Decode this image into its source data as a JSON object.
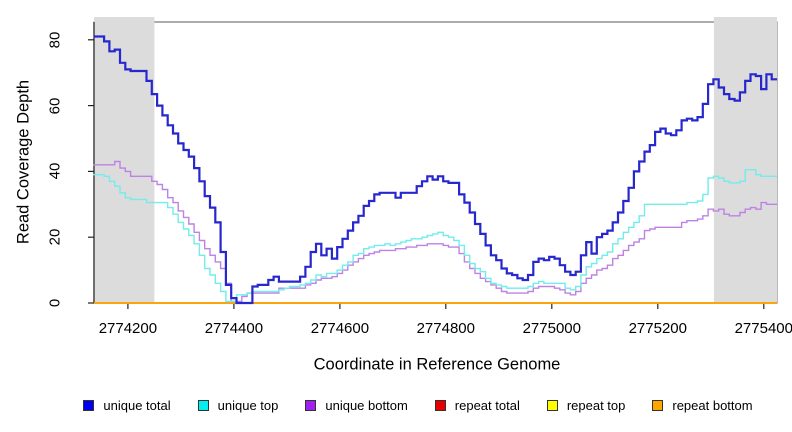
{
  "chart_data": {
    "type": "line",
    "style": "step",
    "title": "",
    "xlabel": "Coordinate in Reference Genome",
    "ylabel": "Read Coverage Depth",
    "grid": false,
    "legend_position": "bottom",
    "x_axis": {
      "min": 2774136,
      "max": 2775425,
      "ticks": [
        2774200,
        2774400,
        2774600,
        2774800,
        2775000,
        2775200,
        2775400
      ]
    },
    "y_axis": {
      "min": 0,
      "max": 85.4,
      "ticks": [
        0,
        20,
        40,
        60,
        80
      ]
    },
    "shaded_regions": [
      {
        "x0": 2774136,
        "x1": 2774250,
        "color": "#dcdcdc"
      },
      {
        "x0": 2775306,
        "x1": 2775425,
        "color": "#dcdcdc"
      }
    ],
    "x_start": 2774140,
    "x_step": 10,
    "series": [
      {
        "name": "unique total",
        "line_color": "#2727ce",
        "legend_fill": "#0000ee",
        "stroke_width": 2.2,
        "values": [
          81,
          81,
          79.5,
          76.5,
          77,
          73,
          71,
          70.5,
          70.5,
          70.5,
          67.5,
          63.5,
          60,
          57,
          54,
          51.5,
          48.5,
          46.5,
          44.5,
          41,
          37,
          32.5,
          29,
          24.5,
          15.5,
          5.5,
          1.5,
          0,
          0,
          0,
          5,
          5.5,
          5.5,
          7,
          8,
          6.5,
          6.5,
          6.5,
          6.5,
          8,
          11,
          15.5,
          18,
          14.5,
          16.5,
          13.5,
          17,
          19.5,
          22,
          24.5,
          26.5,
          29.5,
          31,
          33,
          33.5,
          33.5,
          33.5,
          32,
          33.5,
          33.5,
          33.5,
          35.5,
          37,
          38.5,
          37.5,
          38.5,
          37,
          36.5,
          36.5,
          33,
          30.5,
          27.5,
          24,
          21,
          17.5,
          14.5,
          13,
          10.5,
          9,
          8.5,
          7.5,
          7,
          8.5,
          12.5,
          13.5,
          13,
          14,
          13.5,
          11.5,
          9.5,
          8.5,
          9.5,
          14.5,
          18.5,
          15,
          20,
          21,
          22,
          24.5,
          27.5,
          31,
          35,
          40,
          43,
          46,
          48,
          52,
          53,
          51.5,
          51,
          52.5,
          55.5,
          56,
          55.5,
          56.5,
          60.5,
          66.5,
          68,
          65.5,
          63.5,
          62,
          61.5,
          64,
          67.5,
          69.5,
          69,
          65,
          69.5,
          68
        ]
      },
      {
        "name": "unique top",
        "line_color": "#72edea",
        "legend_fill": "#00efef",
        "stroke_width": 1.4,
        "values": [
          39,
          39,
          38.5,
          37,
          35.5,
          33.5,
          32,
          31.5,
          31.5,
          31.5,
          30.5,
          30.5,
          30.5,
          30.5,
          29,
          27,
          24.5,
          22.5,
          20.5,
          18,
          14.5,
          10.5,
          8.5,
          6,
          3.5,
          0.5,
          0.5,
          2.5,
          2.5,
          3,
          3.5,
          3.5,
          3.5,
          3.5,
          3.5,
          4,
          4.5,
          5,
          5,
          5.5,
          6,
          7,
          8.5,
          8,
          9,
          9,
          10,
          11.5,
          12.5,
          14.5,
          15,
          16.5,
          17,
          17.5,
          17.5,
          18,
          17.5,
          18,
          18.5,
          19,
          19.5,
          19.5,
          20,
          20.5,
          21,
          21.5,
          20.5,
          20,
          19,
          17.5,
          14.5,
          12,
          10.5,
          9.5,
          7.5,
          6,
          5.5,
          5,
          4.5,
          4.5,
          4.5,
          4.5,
          5,
          6,
          6.5,
          6,
          6,
          6,
          6,
          4.5,
          4,
          5,
          8.5,
          11,
          12,
          13.5,
          14.5,
          15.5,
          18,
          19.5,
          21.5,
          23,
          24.5,
          26.5,
          30,
          30,
          30,
          30,
          30,
          30,
          30,
          30,
          30.5,
          30.5,
          31,
          33,
          38,
          38.5,
          38,
          37,
          36.5,
          36.5,
          37,
          40.5,
          40.5,
          39,
          38.5,
          38.5,
          38.5
        ]
      },
      {
        "name": "unique bottom",
        "line_color": "#be82e4",
        "legend_fill": "#a020f0",
        "stroke_width": 1.4,
        "values": [
          42,
          42,
          42,
          42,
          43,
          41,
          40,
          38.5,
          38.5,
          38.5,
          38.5,
          37,
          36,
          34.5,
          32,
          30.5,
          28,
          26,
          24,
          21.5,
          19,
          16.5,
          14.5,
          12.5,
          10.5,
          6,
          0.5,
          0.5,
          2,
          3,
          3,
          3,
          3,
          3,
          3,
          4.5,
          4.5,
          4.5,
          4.5,
          4.5,
          5.5,
          6,
          7,
          7.5,
          7.5,
          8,
          9,
          10,
          11.5,
          12.5,
          13.5,
          14.5,
          15,
          15.5,
          16,
          16,
          16,
          16.5,
          16.5,
          17,
          17,
          17.5,
          17.5,
          18,
          18,
          18,
          17.5,
          17,
          17,
          15,
          12.5,
          10.5,
          9,
          7.5,
          6.5,
          5.5,
          4.5,
          3.5,
          3,
          3,
          3,
          3,
          3.5,
          4.5,
          5,
          5,
          5,
          4.5,
          4,
          3,
          2.5,
          3.5,
          6,
          7.5,
          8.5,
          10,
          10.5,
          11.5,
          13.5,
          14.5,
          16,
          17.5,
          18.5,
          19.5,
          22,
          22.5,
          23,
          23,
          23,
          23,
          23,
          24.5,
          25,
          25,
          25.5,
          26.5,
          28.5,
          28,
          28.5,
          27,
          26.5,
          26.5,
          27.5,
          28.5,
          29,
          28.5,
          30.5,
          30,
          30
        ]
      },
      {
        "name": "repeat total",
        "line_color": "#e00000",
        "legend_fill": "#e60000",
        "stroke_width": 1.4,
        "constant": 0
      },
      {
        "name": "repeat top",
        "line_color": "#ffff00",
        "legend_fill": "#ffff00",
        "stroke_width": 1.4,
        "constant": 0
      },
      {
        "name": "repeat bottom",
        "line_color": "#ff9e00",
        "legend_fill": "#ffa500",
        "stroke_width": 1.6,
        "constant": 0
      }
    ]
  }
}
